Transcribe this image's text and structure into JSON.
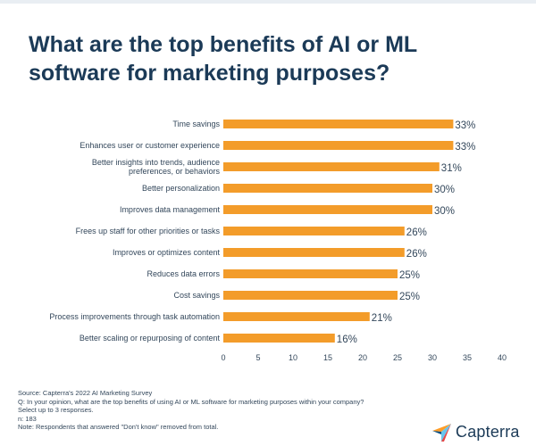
{
  "title": "What are the top benefits of AI or ML software for marketing purposes?",
  "chart_data": {
    "type": "bar",
    "orientation": "horizontal",
    "categories": [
      [
        "Time savings"
      ],
      [
        "Enhances user or customer experience"
      ],
      [
        "Better insights into trends, audience",
        "preferences, or behaviors"
      ],
      [
        "Better personalization"
      ],
      [
        "Improves data management"
      ],
      [
        "Frees up staff for other priorities or tasks"
      ],
      [
        "Improves or optimizes content"
      ],
      [
        "Reduces data errors"
      ],
      [
        "Cost savings"
      ],
      [
        "Process improvements through task automation"
      ],
      [
        "Better scaling or repurposing of content"
      ]
    ],
    "values": [
      33,
      33,
      31,
      30,
      30,
      26,
      26,
      25,
      25,
      21,
      16
    ],
    "value_labels": [
      "33%",
      "33%",
      "31%",
      "30%",
      "30%",
      "26%",
      "26%",
      "25%",
      "25%",
      "21%",
      "16%"
    ],
    "xlim": [
      0,
      40
    ],
    "xticks": [
      "0",
      "5",
      "10",
      "15",
      "20",
      "25",
      "30",
      "35",
      "40"
    ],
    "bar_color": "#f39c2a",
    "grid": false
  },
  "notes": [
    "Source: Capterra's 2022 AI Marketing Survey",
    "Q: In your opinion, what are the top benefits of using AI or ML software for marketing purposes within your company?",
    "Select up to 3 responses.",
    "n: 183",
    "Note: Respondents that answered \"Don't know\" removed from total."
  ],
  "brand": {
    "name": "Capterra",
    "icon": "capterra-arrow-icon"
  }
}
